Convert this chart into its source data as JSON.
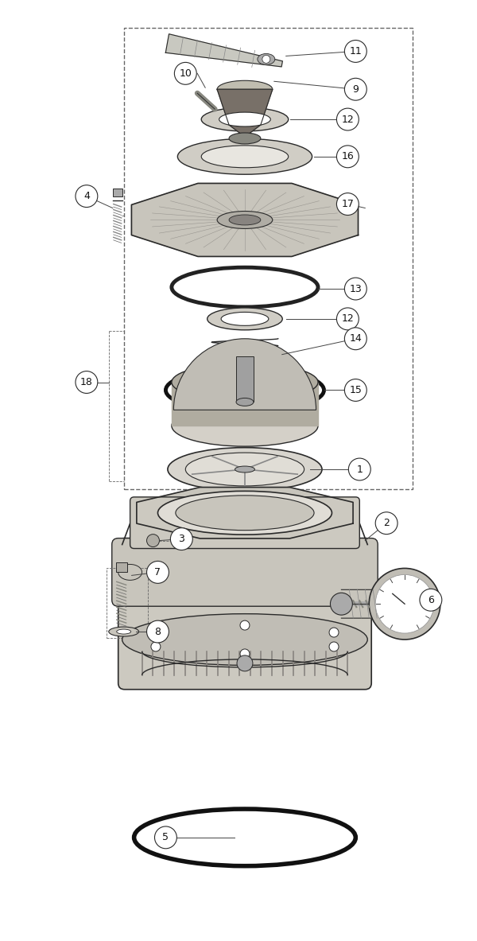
{
  "fig_width": 6.0,
  "fig_height": 11.83,
  "bg_color": "#ffffff",
  "lc": "#2a2a2a",
  "gray_light": "#d4d0c8",
  "gray_mid": "#b0aca0",
  "gray_dark": "#888480",
  "white": "#ffffff"
}
